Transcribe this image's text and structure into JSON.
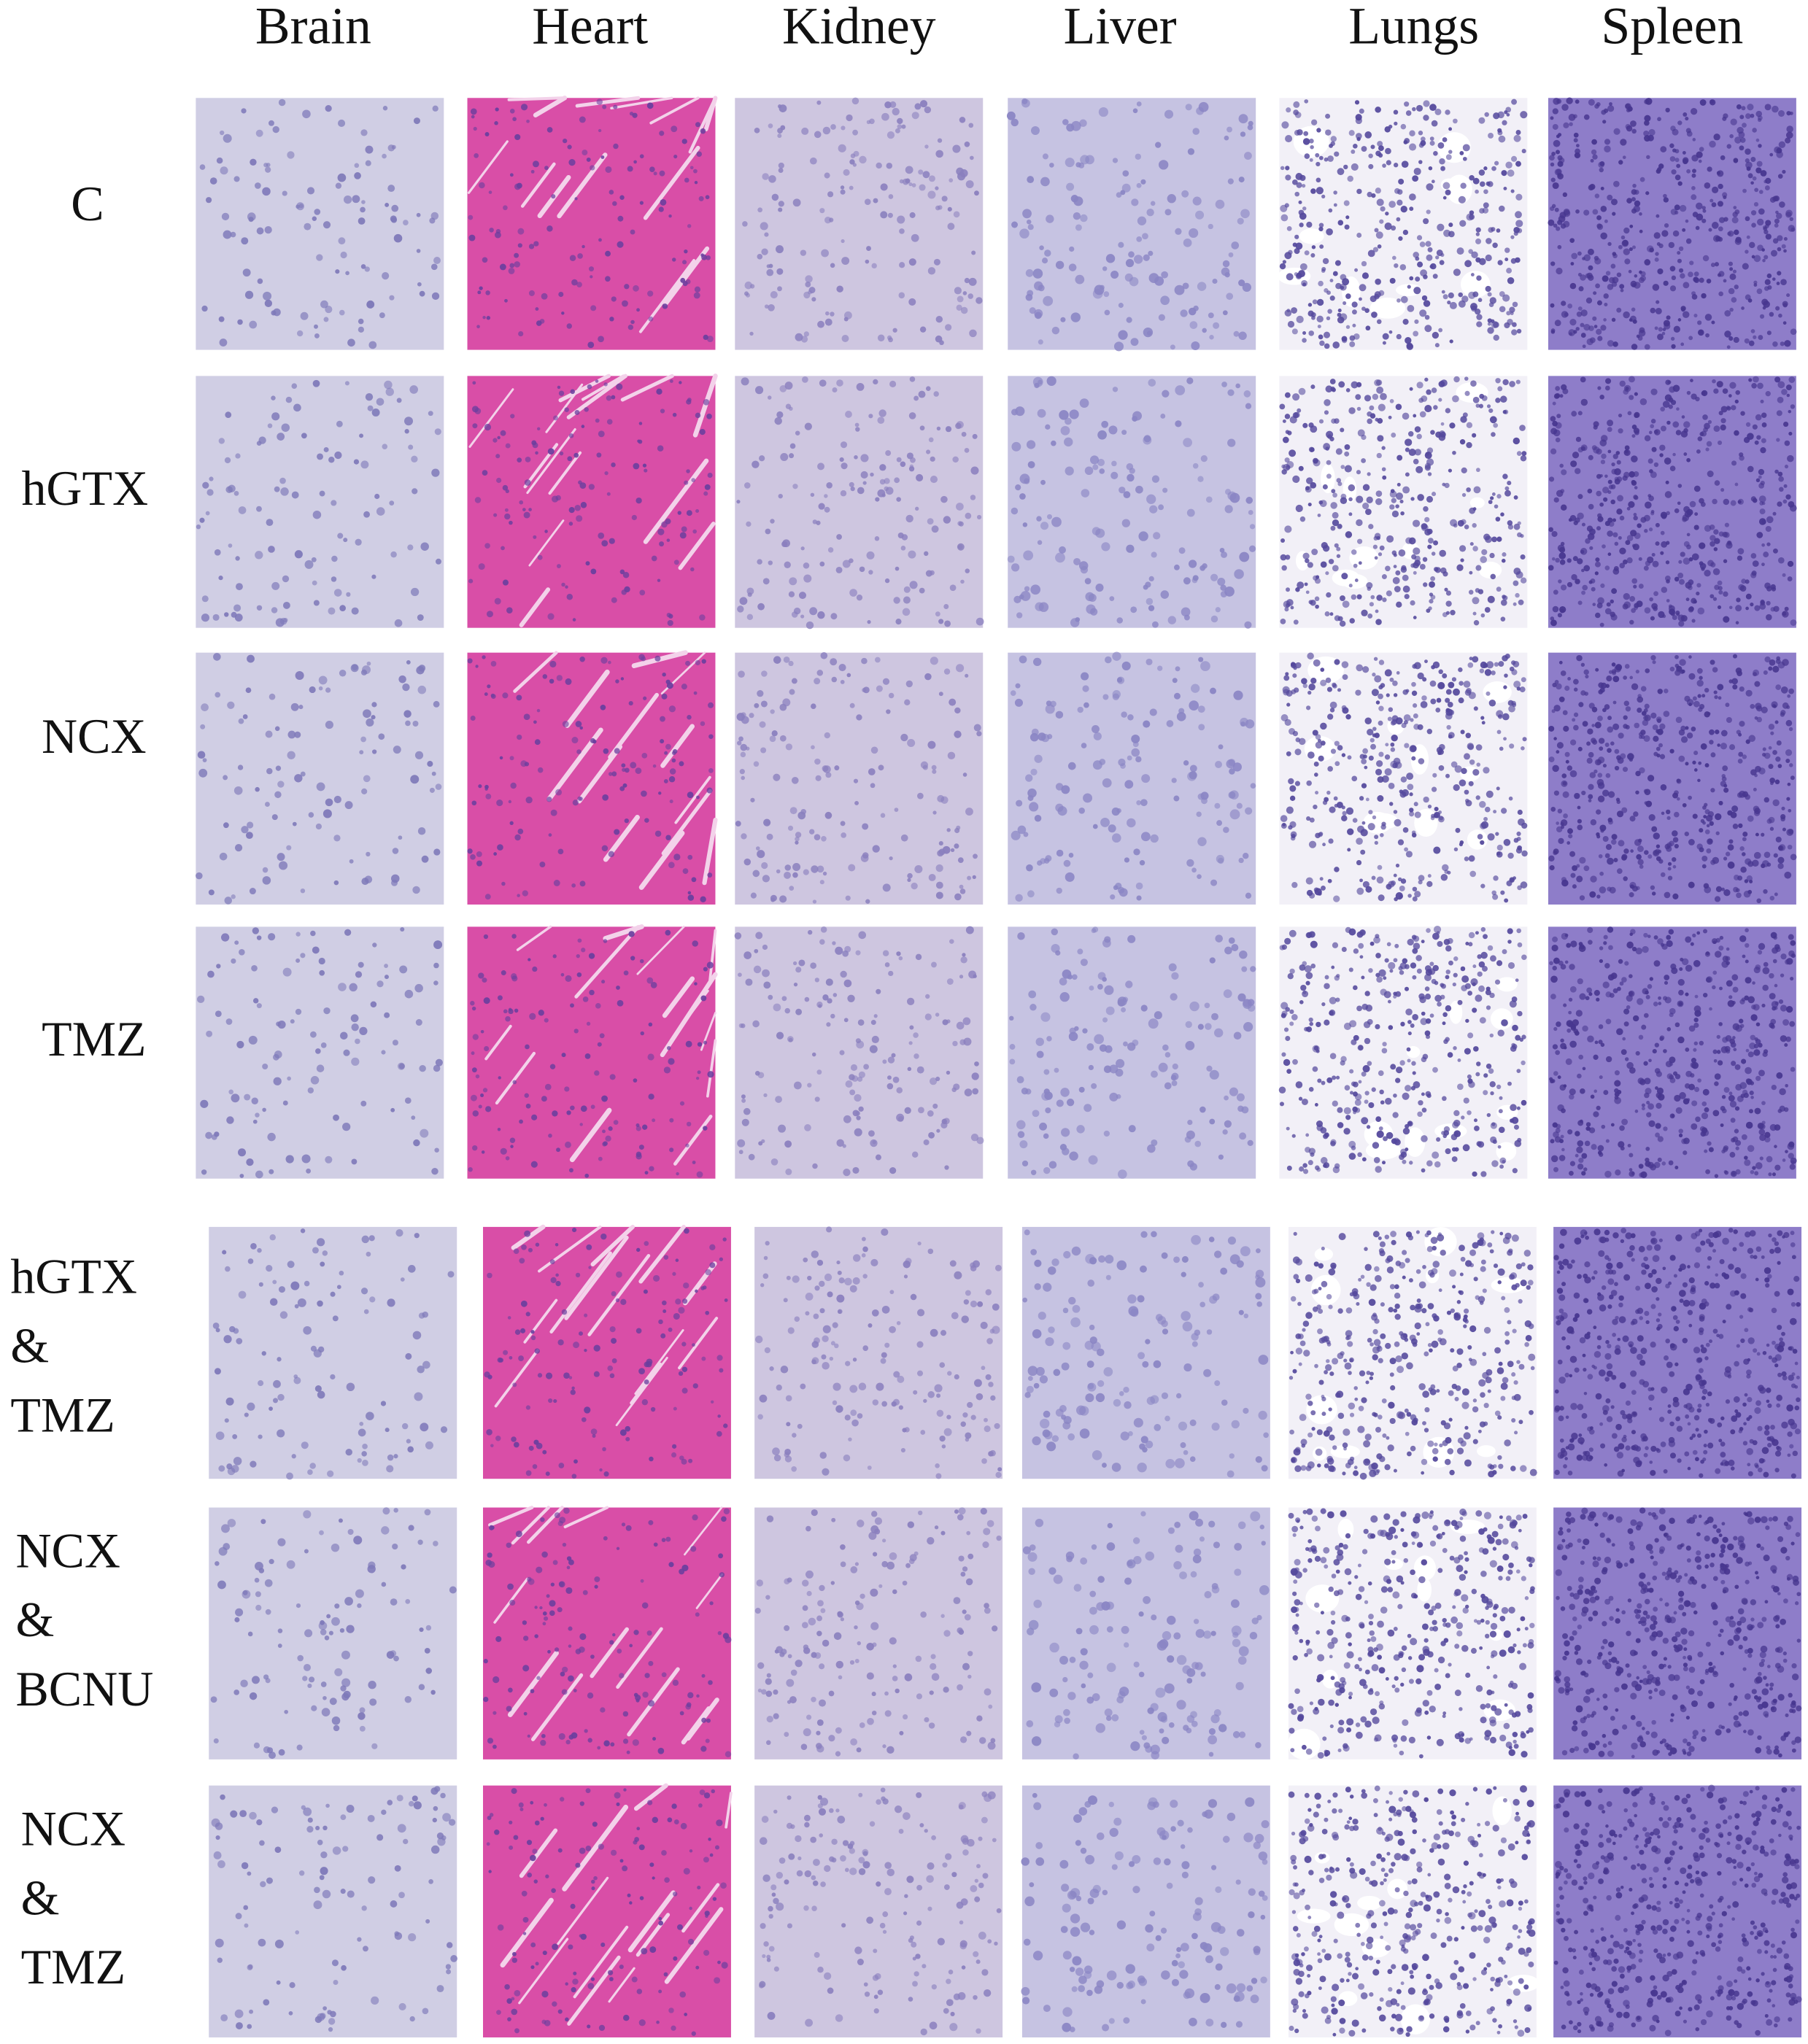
{
  "figure": {
    "column_labels": [
      "Brain",
      "Heart",
      "Kidney",
      "Liver",
      "Lungs",
      "Spleen"
    ],
    "row_labels": [
      [
        "C"
      ],
      [
        "hGTX"
      ],
      [
        "NCX"
      ],
      [
        "TMZ"
      ],
      [
        "hGTX",
        "&",
        "TMZ"
      ],
      [
        "NCX",
        "&",
        "BCNU"
      ],
      [
        "NCX",
        "&",
        "TMZ"
      ]
    ]
  }
}
